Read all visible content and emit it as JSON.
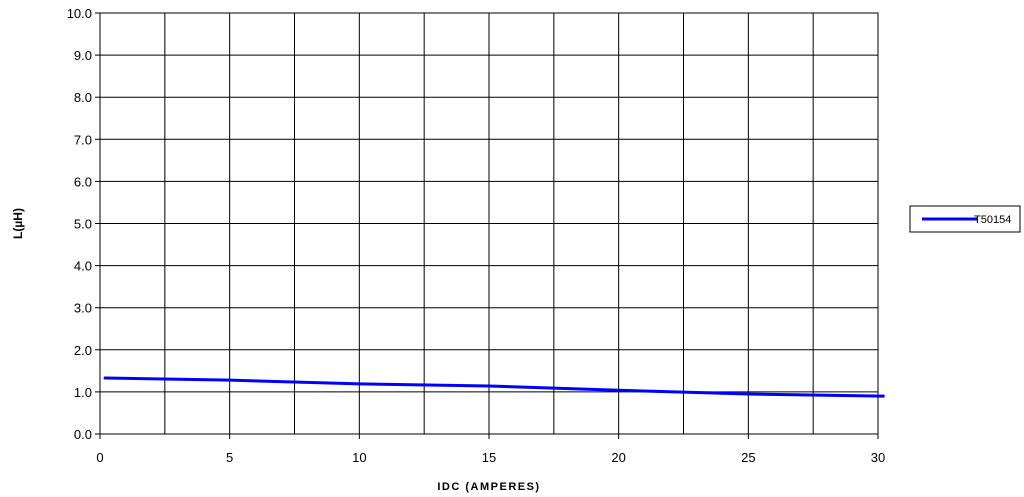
{
  "chart_data": {
    "type": "line",
    "xlabel": "IDC (AMPERES)",
    "ylabel": "L(µH)",
    "xlim": [
      0,
      30
    ],
    "ylim": [
      0,
      10
    ],
    "x_ticks": [
      0,
      5,
      10,
      15,
      20,
      25,
      30
    ],
    "x_tick_labels": [
      "0",
      "5",
      "10",
      "15",
      "20",
      "25",
      "30"
    ],
    "y_ticks": [
      0,
      1,
      2,
      3,
      4,
      5,
      6,
      7,
      8,
      9,
      10
    ],
    "y_tick_labels": [
      "0.0",
      "1.0",
      "2.0",
      "3.0",
      "4.0",
      "5.0",
      "6.0",
      "7.0",
      "8.0",
      "9.0",
      "10.0"
    ],
    "grid": true,
    "legend_position": "right",
    "series": [
      {
        "name": "T50154",
        "color": "#0000ff",
        "x": [
          0.2,
          5,
          10,
          15,
          20,
          25,
          30.2
        ],
        "y": [
          1.33,
          1.28,
          1.19,
          1.14,
          1.04,
          0.95,
          0.9
        ]
      }
    ]
  }
}
